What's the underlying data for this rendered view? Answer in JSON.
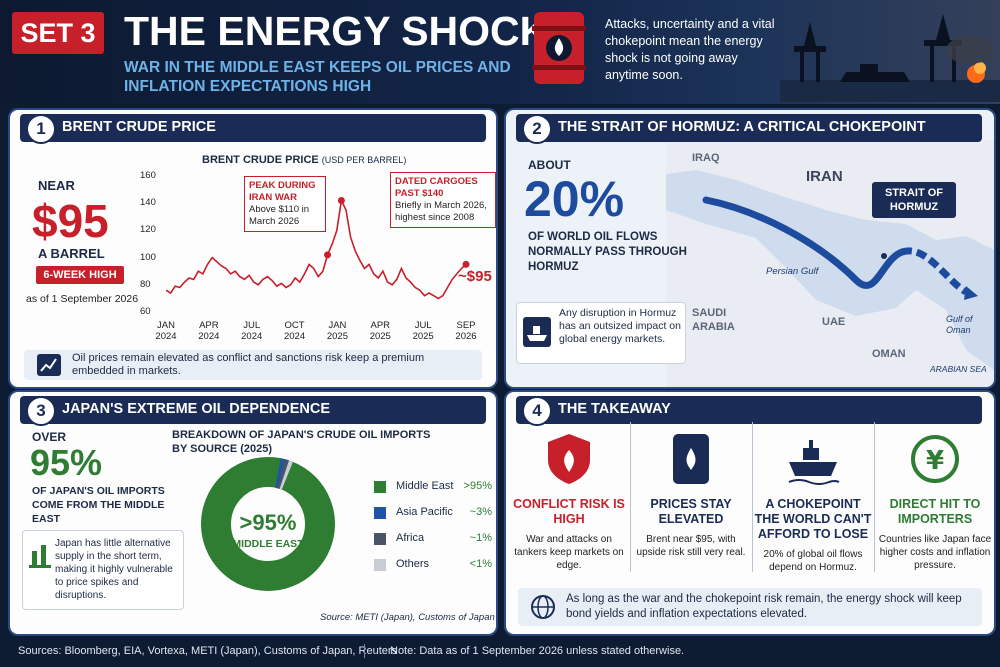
{
  "header": {
    "set_label": "SET 3",
    "title": "THE ENERGY SHOCK",
    "subtitle": "WAR IN THE MIDDLE EAST KEEPS OIL PRICES AND INFLATION EXPECTATIONS HIGH",
    "quote": "Attacks, uncertainty and a vital chokepoint mean the energy shock is not going away anytime soon."
  },
  "panel1": {
    "num": "1",
    "title": "BRENT CRUDE PRICE",
    "near": "NEAR",
    "price": "$95",
    "per": "A BARREL",
    "badge": "6-WEEK HIGH",
    "asof": "as of 1 September 2026",
    "note": "Oil prices remain elevated as conflict and sanctions risk keep a premium embedded in markets."
  },
  "chart_data": {
    "type": "line",
    "title": "BRENT CRUDE PRICE",
    "title_unit": "(USD PER BARREL)",
    "x_ticks": [
      [
        "JAN",
        "2024"
      ],
      [
        "APR",
        "2024"
      ],
      [
        "JUL",
        "2024"
      ],
      [
        "OCT",
        "2024"
      ],
      [
        "JAN",
        "2025"
      ],
      [
        "APR",
        "2025"
      ],
      [
        "JUL",
        "2025"
      ],
      [
        "SEP",
        "2026"
      ]
    ],
    "y_ticks": [
      "160",
      "140",
      "120",
      "100",
      "80",
      "60"
    ],
    "ylim": [
      60,
      160
    ],
    "series": [
      {
        "color": "#c7202a",
        "values": [
          76,
          74,
          79,
          78,
          82,
          85,
          84,
          90,
          88,
          95,
          100,
          97,
          94,
          92,
          88,
          90,
          86,
          84,
          87,
          82,
          80,
          84,
          86,
          83,
          79,
          81,
          78,
          80,
          85,
          82,
          88,
          95,
          92,
          86,
          90,
          102,
          110,
          120,
          142,
          135,
          115,
          105,
          98,
          92,
          95,
          88,
          85,
          90,
          82,
          80,
          84,
          92,
          85,
          82,
          78,
          76,
          72,
          74,
          72,
          70,
          72,
          78,
          84,
          88,
          92,
          95
        ]
      }
    ],
    "annotations": [
      {
        "title": "PEAK DURING IRAN WAR",
        "text": "Above $110 in March 2026"
      },
      {
        "title": "DATED CARGOES PAST $140",
        "text": "Briefly in March 2026, highest since 2008"
      },
      {
        "title": "~$95",
        "text": ""
      }
    ]
  },
  "panel2": {
    "num": "2",
    "title": "THE STRAIT OF HORMUZ: A CRITICAL CHOKEPOINT",
    "about": "ABOUT",
    "pct": "20%",
    "desc": "OF WORLD OIL FLOWS NORMALLY PASS THROUGH HORMUZ",
    "note": "Any disruption in Hormuz has an outsized impact on global energy markets.",
    "map": {
      "iraq": "IRAQ",
      "iran": "IRAN",
      "strait": "STRAIT OF HORMUZ",
      "gulf": "Persian Gulf",
      "saudi": "SAUDI ARABIA",
      "uae": "UAE",
      "oman": "OMAN",
      "gulf_oman": "Gulf of Oman",
      "arabian": "ARABIAN SEA"
    }
  },
  "panel3": {
    "num": "3",
    "title": "JAPAN'S EXTREME OIL DEPENDENCE",
    "over": "OVER",
    "pct": "95%",
    "desc": "OF JAPAN'S OIL IMPORTS COME FROM THE MIDDLE EAST",
    "note": "Japan has little alternative supply in the short term, making it highly vulnerable to price spikes and disruptions.",
    "donut_title": "BREAKDOWN OF JAPAN'S CRUDE OIL IMPORTS BY SOURCE (2025)",
    "center_pct": ">95%",
    "center_label": "MIDDLE EAST",
    "legend": [
      {
        "label": "Middle East",
        "value": ">95%",
        "color": "#2e7d32"
      },
      {
        "label": "Asia Pacific",
        "value": "~3%",
        "color": "#1f55a6"
      },
      {
        "label": "Africa",
        "value": "~1%",
        "color": "#4a5468"
      },
      {
        "label": "Others",
        "value": "<1%",
        "color": "#c8ccd4"
      }
    ],
    "source": "Source: METI (Japan), Customs of Japan"
  },
  "panel4": {
    "num": "4",
    "title": "THE TAKEAWAY",
    "cols": [
      {
        "head": "CONFLICT RISK IS HIGH",
        "body": "War and attacks on tankers keep markets on edge.",
        "color": "#c7202a"
      },
      {
        "head": "PRICES STAY ELEVATED",
        "body": "Brent near $95, with upside risk still very real.",
        "color": "#1a2c55"
      },
      {
        "head": "A CHOKEPOINT THE WORLD CAN'T AFFORD TO LOSE",
        "body": "20% of global oil flows depend on Hormuz.",
        "color": "#1a2c55"
      },
      {
        "head": "DIRECT HIT TO IMPORTERS",
        "body": "Countries like Japan face higher costs and inflation pressure.",
        "color": "#2e7d32"
      }
    ],
    "note": "As long as the war and the chokepoint risk remain, the energy shock will keep bond yields and inflation expectations elevated."
  },
  "footer": {
    "sources": "Sources: Bloomberg, EIA, Vortexa, METI (Japan), Customs of Japan, Reuters",
    "note": "Note: Data as of 1 September 2026 unless stated otherwise."
  }
}
